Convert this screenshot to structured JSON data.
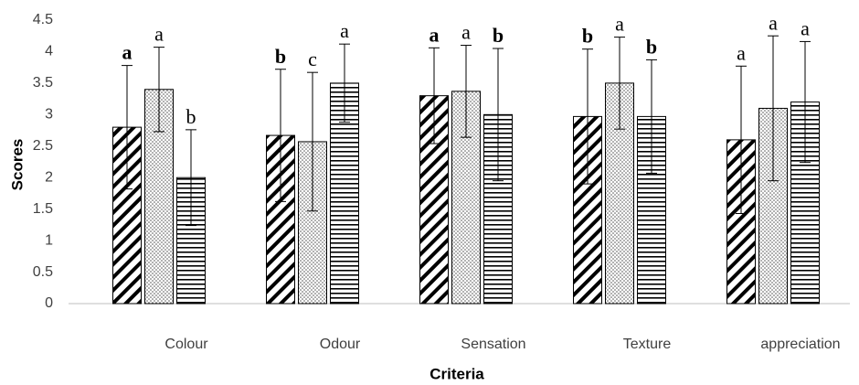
{
  "chart_data": {
    "type": "bar",
    "categories": [
      "Colour",
      "Odour",
      "Sensation",
      "Texture",
      "appreciation"
    ],
    "x_label": "Criteria",
    "y_label": "Scores",
    "ylim": [
      0,
      4.5
    ],
    "yticks": [
      0,
      0.5,
      1,
      1.5,
      2,
      2.5,
      3,
      3.5,
      4,
      4.5
    ],
    "grid": false,
    "series": [
      {
        "pattern": "diagonal",
        "color": "#000000",
        "values": [
          2.8,
          2.67,
          3.3,
          2.97,
          2.6
        ],
        "errors": [
          0.98,
          1.05,
          0.76,
          1.07,
          1.17
        ],
        "letters": [
          "a",
          "b",
          "a",
          "b",
          "a"
        ],
        "letters_bold": [
          true,
          true,
          true,
          true,
          false
        ]
      },
      {
        "pattern": "dots",
        "color": "#000000",
        "values": [
          3.4,
          2.57,
          3.37,
          3.5,
          3.1
        ],
        "errors": [
          0.67,
          1.1,
          0.73,
          0.73,
          1.15
        ],
        "letters": [
          "a",
          "c",
          "a",
          "a",
          "a"
        ],
        "letters_bold": [
          false,
          false,
          false,
          false,
          false
        ]
      },
      {
        "pattern": "horizontal",
        "color": "#000000",
        "values": [
          2.0,
          3.5,
          3.0,
          2.97,
          3.2
        ],
        "errors": [
          0.76,
          0.62,
          1.05,
          0.9,
          0.96
        ],
        "letters": [
          "b",
          "a",
          "b",
          "b",
          "a"
        ],
        "letters_bold": [
          false,
          false,
          true,
          true,
          false
        ]
      }
    ]
  }
}
